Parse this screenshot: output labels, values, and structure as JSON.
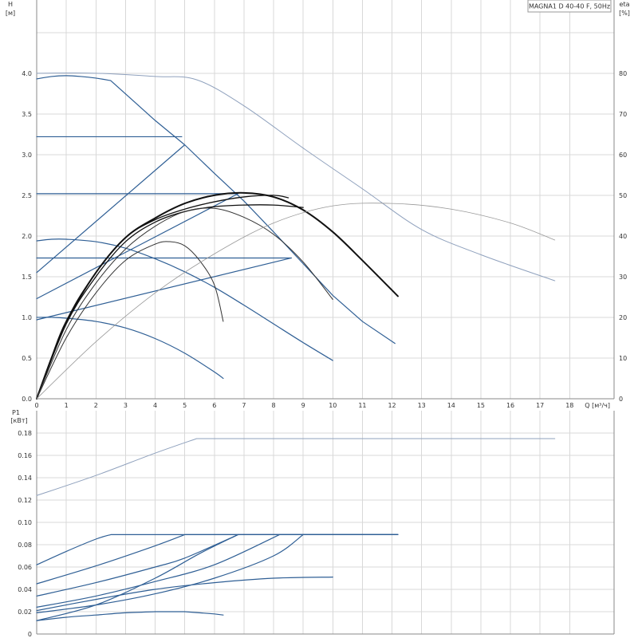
{
  "chart_data": {
    "type": "line",
    "title": "MAGNA1 D 40-40 F, 50Hz",
    "colors": {
      "blue": "#2f5f95",
      "black": "#111111",
      "dark": "#333333",
      "lightblue": "#8fa1bd",
      "gray": "#999999"
    },
    "top": {
      "xlabel": "Q [м³/ч]",
      "ylabel": "H",
      "ylabel_unit": "[м]",
      "y2label": "eta",
      "y2label_unit": "[%]",
      "xlim": [
        0,
        19.5
      ],
      "ylim": [
        0,
        4.9
      ],
      "y2lim": [
        0,
        98
      ],
      "x_ticks": [
        0,
        1,
        2,
        3,
        4,
        5,
        6,
        7,
        8,
        9,
        10,
        11,
        12,
        13,
        14,
        15,
        16,
        17,
        18
      ],
      "y_ticks": [
        0.0,
        0.5,
        1.0,
        1.5,
        2.0,
        2.5,
        3.0,
        3.5,
        4.0
      ],
      "y2_ticks": [
        0,
        10,
        20,
        30,
        40,
        50,
        60,
        70,
        80
      ],
      "grid": true,
      "series": [
        {
          "kind": "head",
          "color": "blue",
          "width": 1.2,
          "x": [
            0,
            0.5,
            1,
            1.5,
            2,
            2.5,
            4,
            5,
            6,
            7,
            8,
            9,
            10,
            11,
            12.1
          ],
          "y": [
            3.93,
            3.96,
            3.97,
            3.96,
            3.94,
            3.91,
            3.42,
            3.12,
            2.77,
            2.43,
            2.05,
            1.66,
            1.27,
            0.95,
            0.68
          ]
        },
        {
          "kind": "head",
          "color": "blue",
          "width": 1.2,
          "x": [
            0,
            4.9
          ],
          "y": [
            3.22,
            3.22
          ]
        },
        {
          "kind": "head",
          "color": "blue",
          "width": 1.2,
          "x": [
            0,
            6.8
          ],
          "y": [
            2.52,
            2.52
          ]
        },
        {
          "kind": "head",
          "color": "blue",
          "width": 1.2,
          "x": [
            0,
            8.6
          ],
          "y": [
            1.73,
            1.73
          ]
        },
        {
          "kind": "head",
          "color": "blue",
          "width": 1.2,
          "x": [
            0,
            5
          ],
          "y": [
            1.55,
            3.12
          ]
        },
        {
          "kind": "head",
          "color": "blue",
          "width": 1.2,
          "x": [
            0,
            6.8
          ],
          "y": [
            1.23,
            2.52
          ]
        },
        {
          "kind": "head",
          "color": "blue",
          "width": 1.2,
          "x": [
            0,
            8.6
          ],
          "y": [
            0.97,
            1.73
          ]
        },
        {
          "kind": "head",
          "color": "blue",
          "width": 1.2,
          "x": [
            0,
            0.5,
            1,
            2,
            3,
            4,
            5,
            6,
            7,
            8,
            9,
            10
          ],
          "y": [
            1.94,
            1.96,
            1.96,
            1.93,
            1.85,
            1.72,
            1.56,
            1.37,
            1.15,
            0.92,
            0.69,
            0.47
          ]
        },
        {
          "kind": "head",
          "color": "blue",
          "width": 1.2,
          "x": [
            0,
            0.5,
            1,
            2,
            3,
            4,
            5,
            6,
            6.3
          ],
          "y": [
            1.0,
            1.0,
            0.99,
            0.95,
            0.87,
            0.74,
            0.56,
            0.33,
            0.25
          ]
        },
        {
          "kind": "head",
          "color": "lightblue",
          "width": 1.0,
          "x": [
            0,
            2,
            4,
            5.4,
            7,
            9,
            11,
            13,
            15,
            17.5
          ],
          "y": [
            4.0,
            4.0,
            3.96,
            3.92,
            3.6,
            3.08,
            2.58,
            2.08,
            1.77,
            1.45
          ]
        },
        {
          "kind": "eta",
          "color": "black",
          "width": 2.0,
          "x": [
            0,
            0.5,
            1,
            2,
            3,
            4,
            5,
            6,
            7,
            8,
            9,
            10,
            11,
            12.2
          ],
          "y": [
            0,
            0.5,
            0.95,
            1.55,
            1.98,
            2.22,
            2.4,
            2.5,
            2.53,
            2.48,
            2.32,
            2.05,
            1.7,
            1.26
          ]
        },
        {
          "kind": "eta",
          "color": "black",
          "width": 1.3,
          "x": [
            0,
            1,
            2,
            3,
            4,
            5,
            6,
            7,
            8,
            8.5
          ],
          "y": [
            0,
            0.95,
            1.55,
            1.98,
            2.2,
            2.33,
            2.42,
            2.48,
            2.5,
            2.47
          ]
        },
        {
          "kind": "eta",
          "color": "black",
          "width": 1.3,
          "x": [
            0,
            1,
            2,
            3,
            4,
            5,
            6,
            7,
            8,
            9
          ],
          "y": [
            0,
            0.92,
            1.5,
            1.93,
            2.17,
            2.3,
            2.36,
            2.38,
            2.38,
            2.35
          ]
        },
        {
          "kind": "eta",
          "color": "dark",
          "width": 1.0,
          "x": [
            0,
            1,
            2,
            3,
            4,
            5,
            6,
            7,
            8,
            9,
            10
          ],
          "y": [
            0,
            0.85,
            1.42,
            1.84,
            2.12,
            2.3,
            2.34,
            2.23,
            2.02,
            1.68,
            1.22
          ]
        },
        {
          "kind": "eta",
          "color": "dark",
          "width": 1.0,
          "x": [
            0,
            1,
            2,
            3,
            4,
            4.5,
            5,
            5.5,
            6,
            6.3
          ],
          "y": [
            0,
            0.75,
            1.3,
            1.7,
            1.9,
            1.93,
            1.88,
            1.7,
            1.4,
            0.95
          ]
        },
        {
          "kind": "eta",
          "color": "gray",
          "width": 0.8,
          "x": [
            0,
            2,
            4,
            6,
            8,
            10,
            12,
            14,
            16,
            17.5
          ],
          "y": [
            0,
            0.7,
            1.3,
            1.78,
            2.16,
            2.37,
            2.4,
            2.33,
            2.16,
            1.95
          ]
        }
      ]
    },
    "bottom": {
      "ylabel": "P1",
      "ylabel_unit": "[кВт]",
      "xlim": [
        0,
        19.5
      ],
      "ylim": [
        0,
        0.2
      ],
      "y_ticks": [
        "0",
        "0.02",
        "0.04",
        "0.06",
        "0.08",
        "0.10",
        "0.12",
        "0.14",
        "0.16",
        "0.18"
      ],
      "series": [
        {
          "color": "lightblue",
          "width": 1.0,
          "x": [
            0,
            2,
            4,
            5.4,
            8,
            12,
            17.5
          ],
          "y": [
            0.124,
            0.142,
            0.162,
            0.175,
            0.175,
            0.175,
            0.175
          ]
        },
        {
          "color": "blue",
          "width": 1.2,
          "x": [
            0,
            1,
            2,
            2.5,
            12.2
          ],
          "y": [
            0.062,
            0.074,
            0.085,
            0.089,
            0.089
          ]
        },
        {
          "color": "blue",
          "width": 1.2,
          "x": [
            0,
            2,
            4,
            5,
            12.2
          ],
          "y": [
            0.045,
            0.061,
            0.079,
            0.089,
            0.089
          ]
        },
        {
          "color": "blue",
          "width": 1.2,
          "x": [
            0,
            2,
            4,
            5,
            6.8,
            12.2
          ],
          "y": [
            0.034,
            0.046,
            0.06,
            0.068,
            0.089,
            0.089
          ]
        },
        {
          "color": "blue",
          "width": 1.2,
          "x": [
            0,
            2,
            4,
            6,
            8.2,
            12.2
          ],
          "y": [
            0.024,
            0.034,
            0.047,
            0.062,
            0.089,
            0.089
          ]
        },
        {
          "color": "blue",
          "width": 1.2,
          "x": [
            0,
            2,
            4,
            6,
            8,
            9,
            12.2
          ],
          "y": [
            0.019,
            0.026,
            0.036,
            0.05,
            0.07,
            0.089,
            0.089
          ]
        },
        {
          "color": "blue",
          "width": 1.2,
          "x": [
            0,
            2,
            4,
            5.5,
            6.8
          ],
          "y": [
            0.012,
            0.026,
            0.05,
            0.072,
            0.089
          ]
        },
        {
          "color": "blue",
          "width": 1.2,
          "x": [
            0,
            2,
            4,
            6,
            8,
            10
          ],
          "y": [
            0.021,
            0.031,
            0.04,
            0.046,
            0.05,
            0.051
          ]
        },
        {
          "color": "blue",
          "width": 1.2,
          "x": [
            0,
            1,
            2,
            3,
            4,
            5,
            6,
            6.3
          ],
          "y": [
            0.012,
            0.015,
            0.017,
            0.019,
            0.02,
            0.02,
            0.018,
            0.017
          ]
        }
      ]
    }
  }
}
